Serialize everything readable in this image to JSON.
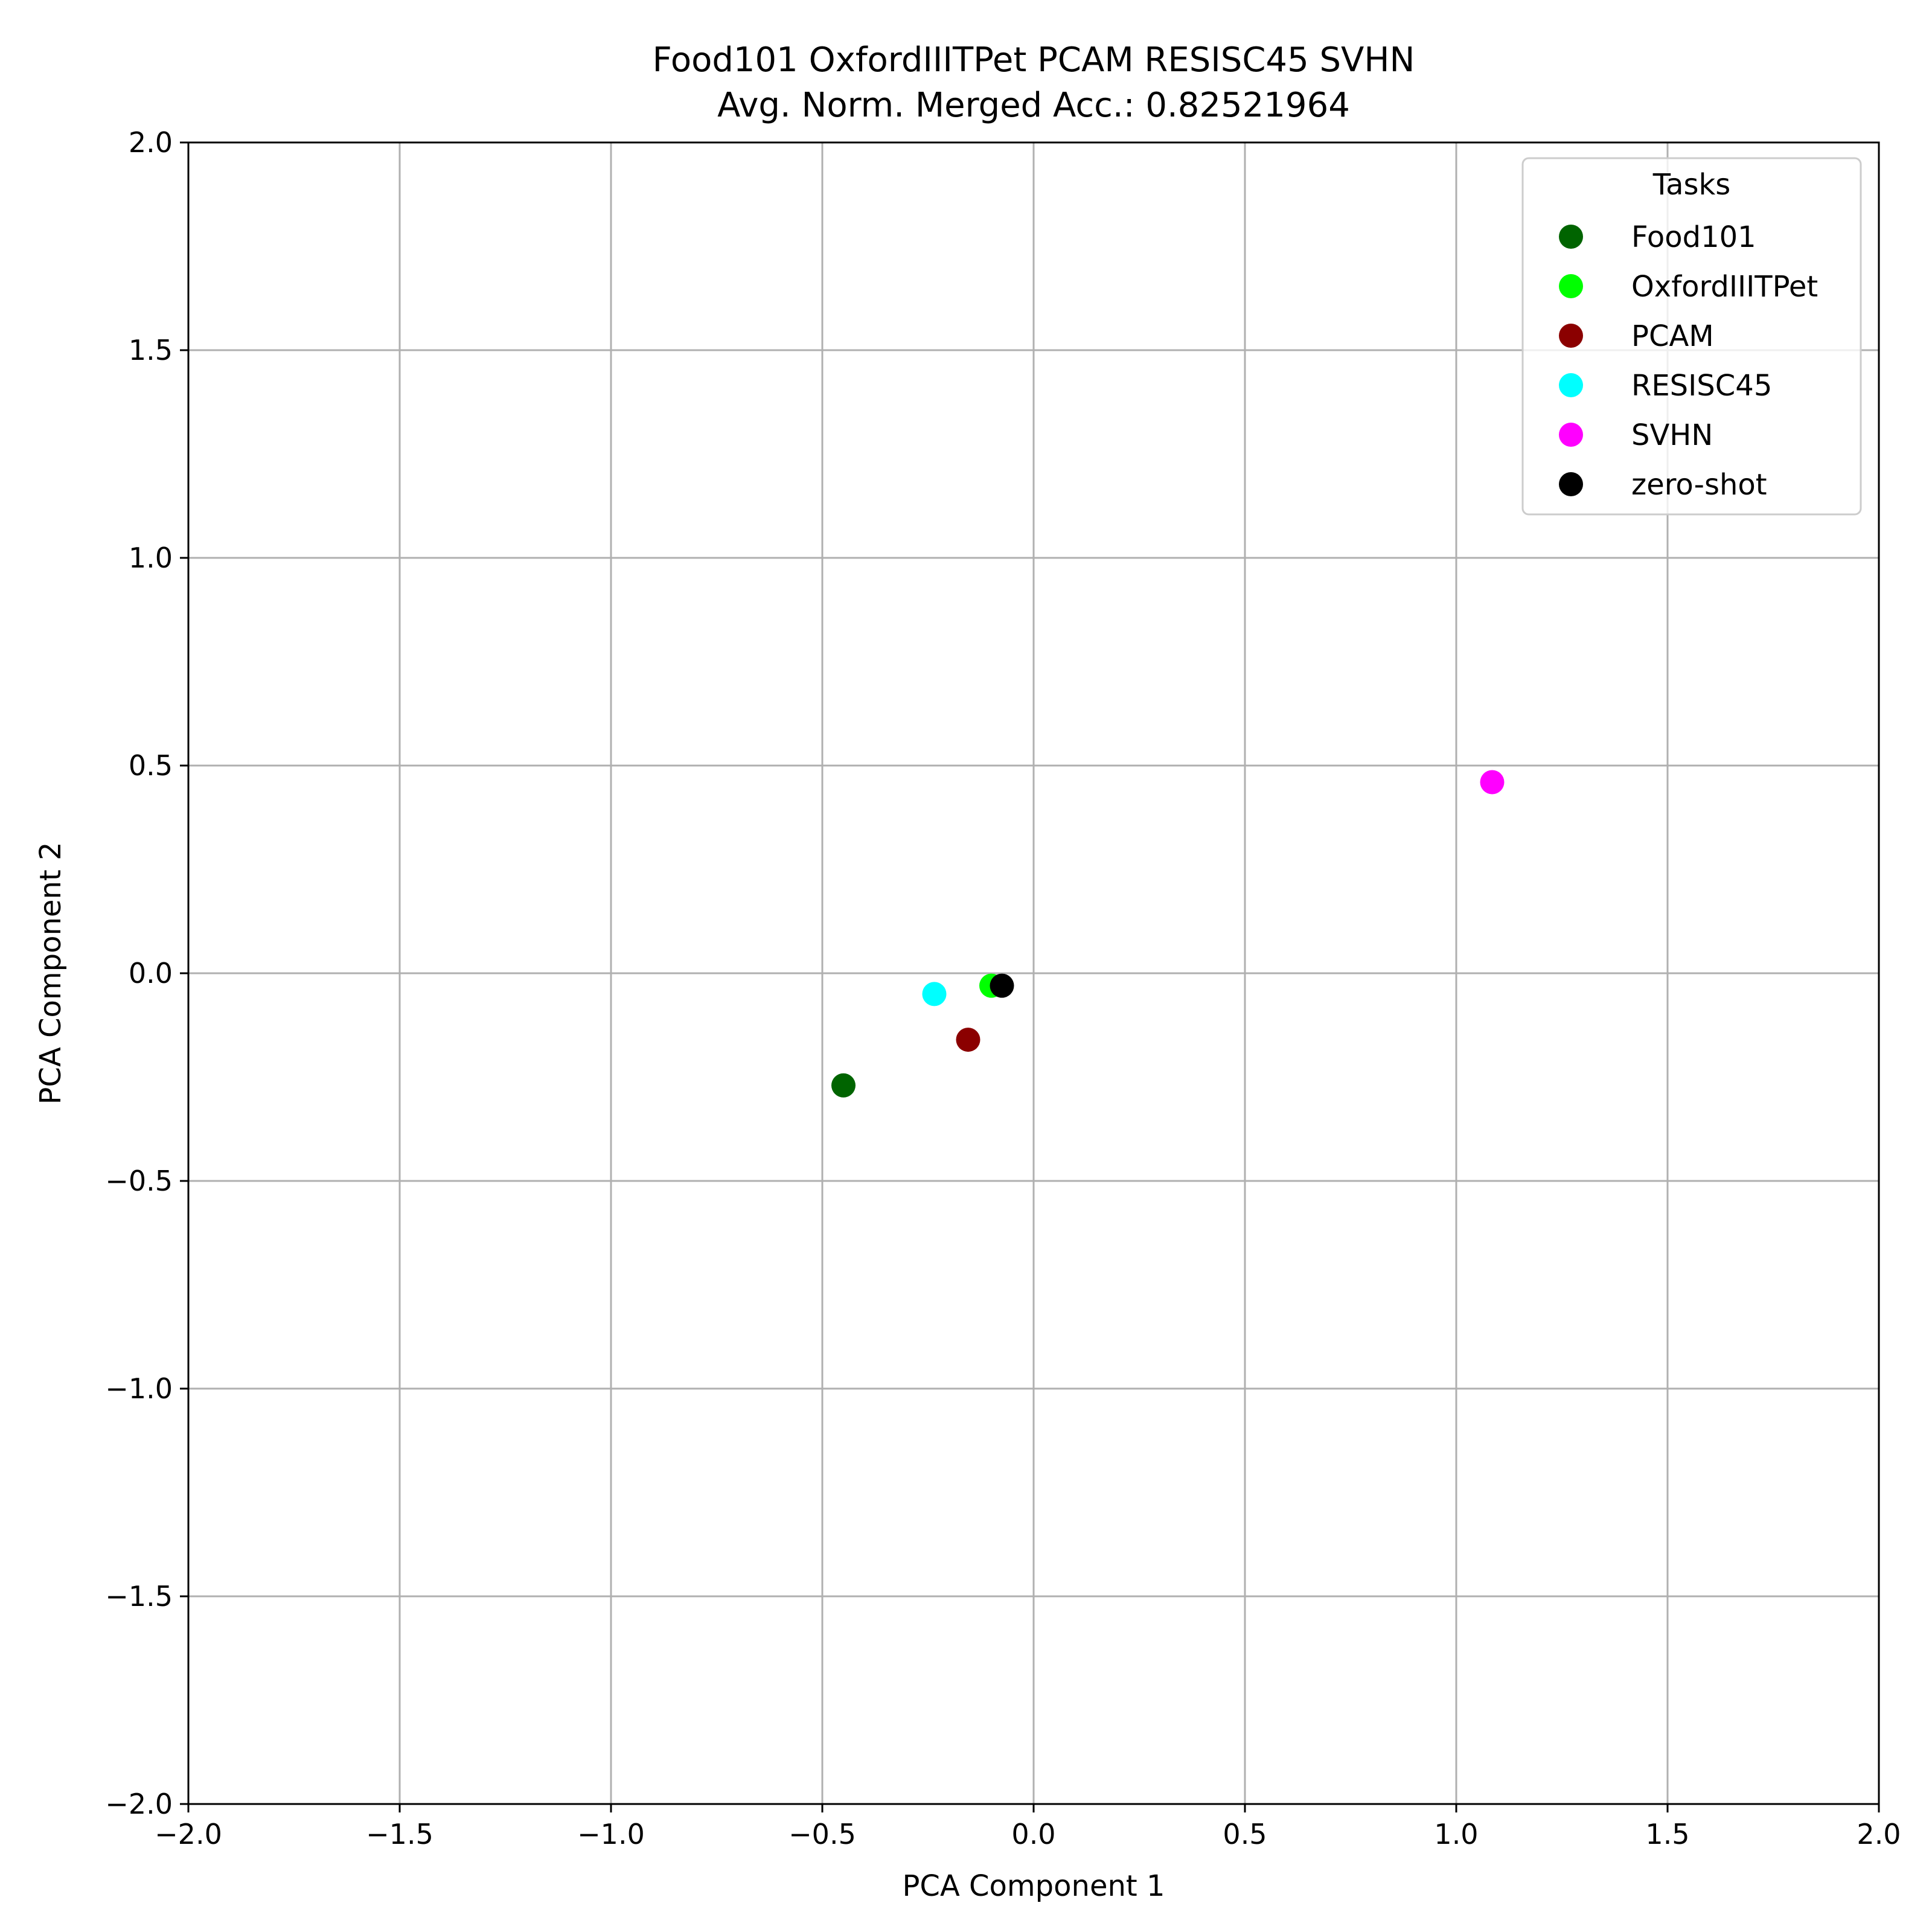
{
  "chart_data": {
    "type": "scatter",
    "title": "Food101 OxfordIIITPet PCAM RESISC45 SVHN",
    "subtitle": "Avg. Norm. Merged Acc.: 0.82521964",
    "xlabel": "PCA Component 1",
    "ylabel": "PCA Component 2",
    "xlim": [
      -2.0,
      2.0
    ],
    "ylim": [
      -2.0,
      2.0
    ],
    "xticks": [
      "−2.0",
      "−1.5",
      "−1.0",
      "−0.5",
      "0.0",
      "0.5",
      "1.0",
      "1.5",
      "2.0"
    ],
    "yticks": [
      "−2.0",
      "−1.5",
      "−1.0",
      "−0.5",
      "0.0",
      "0.5",
      "1.0",
      "1.5",
      "2.0"
    ],
    "grid": true,
    "legend": {
      "title": "Tasks",
      "placement": "top-right"
    },
    "series": [
      {
        "name": "Food101",
        "color": "#006400",
        "points": [
          {
            "x": -0.45,
            "y": -0.27
          }
        ]
      },
      {
        "name": "OxfordIIITPet",
        "color": "#00ff00",
        "points": [
          {
            "x": -0.1,
            "y": -0.03
          }
        ]
      },
      {
        "name": "PCAM",
        "color": "#8b0000",
        "points": [
          {
            "x": -0.155,
            "y": -0.16
          }
        ]
      },
      {
        "name": "RESISC45",
        "color": "#00ffff",
        "points": [
          {
            "x": -0.235,
            "y": -0.05
          }
        ]
      },
      {
        "name": "SVHN",
        "color": "#ff00ff",
        "points": [
          {
            "x": 1.085,
            "y": 0.46
          }
        ]
      },
      {
        "name": "zero-shot",
        "color": "#000000",
        "points": [
          {
            "x": -0.075,
            "y": -0.03
          }
        ]
      }
    ]
  }
}
